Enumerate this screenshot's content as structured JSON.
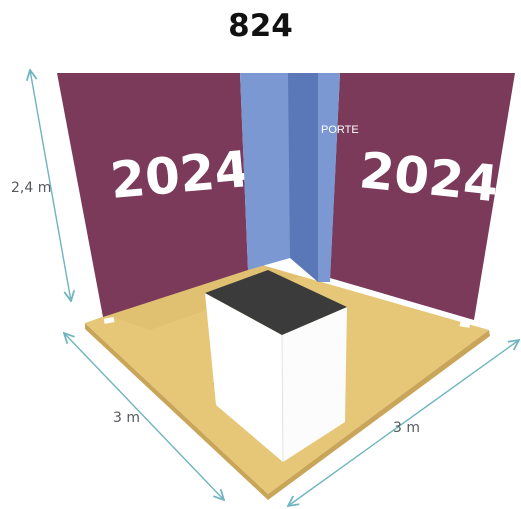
{
  "booth": {
    "number": "824"
  },
  "walls": {
    "left_print": "2024",
    "right_print": "2024",
    "door_label": "PORTE"
  },
  "dimensions": {
    "height": "2,4 m",
    "width_left": "3 m",
    "width_right": "3 m"
  },
  "colors": {
    "wall": "#7b3a5a",
    "floor": "#e6c777",
    "floor_edge": "#c9a559",
    "door_light": "#7b98d2",
    "door_dark": "#5a78b8",
    "counter_top": "#3b3b3b",
    "counter_body": "#ffffff",
    "dimension_line": "#6fb4bf"
  }
}
